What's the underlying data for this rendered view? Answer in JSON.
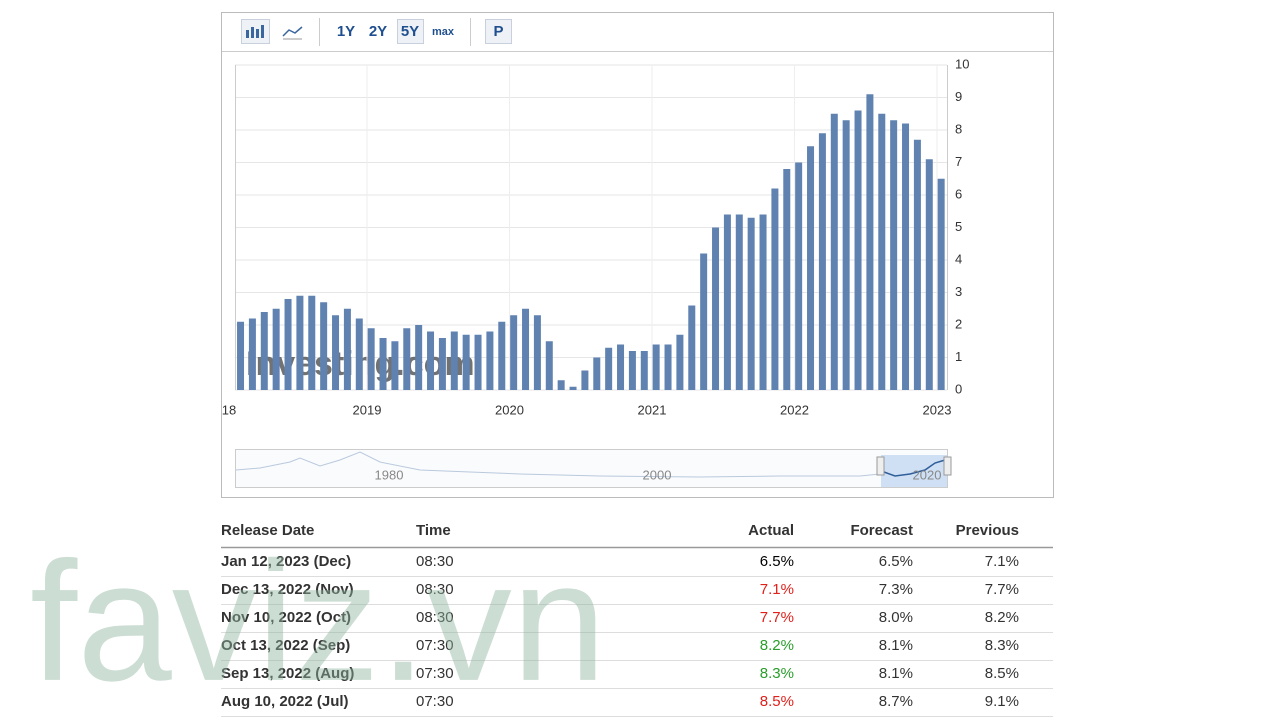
{
  "toolbar": {
    "ranges": [
      "1Y",
      "2Y",
      "5Y",
      "max"
    ],
    "print": "P"
  },
  "chart_data": {
    "type": "bar",
    "color": "#5f82b0",
    "values": [
      2.1,
      2.2,
      2.4,
      2.5,
      2.8,
      2.9,
      2.9,
      2.7,
      2.3,
      2.5,
      2.2,
      1.9,
      1.6,
      1.5,
      1.9,
      2.0,
      1.8,
      1.6,
      1.8,
      1.7,
      1.7,
      1.8,
      2.1,
      2.3,
      2.5,
      2.3,
      1.5,
      0.3,
      0.1,
      0.6,
      1.0,
      1.3,
      1.4,
      1.2,
      1.2,
      1.4,
      1.4,
      1.7,
      2.6,
      4.2,
      5.0,
      5.4,
      5.4,
      5.3,
      5.4,
      6.2,
      6.8,
      7.0,
      7.5,
      7.9,
      8.5,
      8.3,
      8.6,
      9.1,
      8.5,
      8.3,
      8.2,
      7.7,
      7.1,
      6.5
    ],
    "xticks": [
      {
        "value": 2018,
        "label": "18"
      },
      2019,
      2020,
      2021,
      2022,
      2023
    ],
    "ylim": [
      0,
      10
    ],
    "yticks": [
      0,
      1,
      2,
      3,
      4,
      5,
      6,
      7,
      8,
      9,
      10
    ],
    "grid": true,
    "watermark": "Investing.com",
    "navigator_labels": [
      1980,
      2000,
      2020
    ]
  },
  "table": {
    "header": [
      "Release Date",
      "Time",
      "Actual",
      "Forecast",
      "Previous"
    ],
    "rows": [
      {
        "date": "Jan 12, 2023 (Dec)",
        "time": "08:30",
        "actual": "6.5%",
        "forecast": "6.5%",
        "previous": "7.1%",
        "actual_color": "#000000"
      },
      {
        "date": "Dec 13, 2022 (Nov)",
        "time": "08:30",
        "actual": "7.1%",
        "forecast": "7.3%",
        "previous": "7.7%",
        "actual_color": "#e0201b"
      },
      {
        "date": "Nov 10, 2022 (Oct)",
        "time": "08:30",
        "actual": "7.7%",
        "forecast": "8.0%",
        "previous": "8.2%",
        "actual_color": "#e0201b"
      },
      {
        "date": "Oct 13, 2022 (Sep)",
        "time": "07:30",
        "actual": "8.2%",
        "forecast": "8.1%",
        "previous": "8.3%",
        "actual_color": "#2a9d2a"
      },
      {
        "date": "Sep 13, 2022 (Aug)",
        "time": "07:30",
        "actual": "8.3%",
        "forecast": "8.1%",
        "previous": "8.5%",
        "actual_color": "#2a9d2a"
      },
      {
        "date": "Aug 10, 2022 (Jul)",
        "time": "07:30",
        "actual": "8.5%",
        "forecast": "8.7%",
        "previous": "9.1%",
        "actual_color": "#e0201b"
      }
    ]
  },
  "overlay": {
    "watermark": "faviz.vn"
  }
}
